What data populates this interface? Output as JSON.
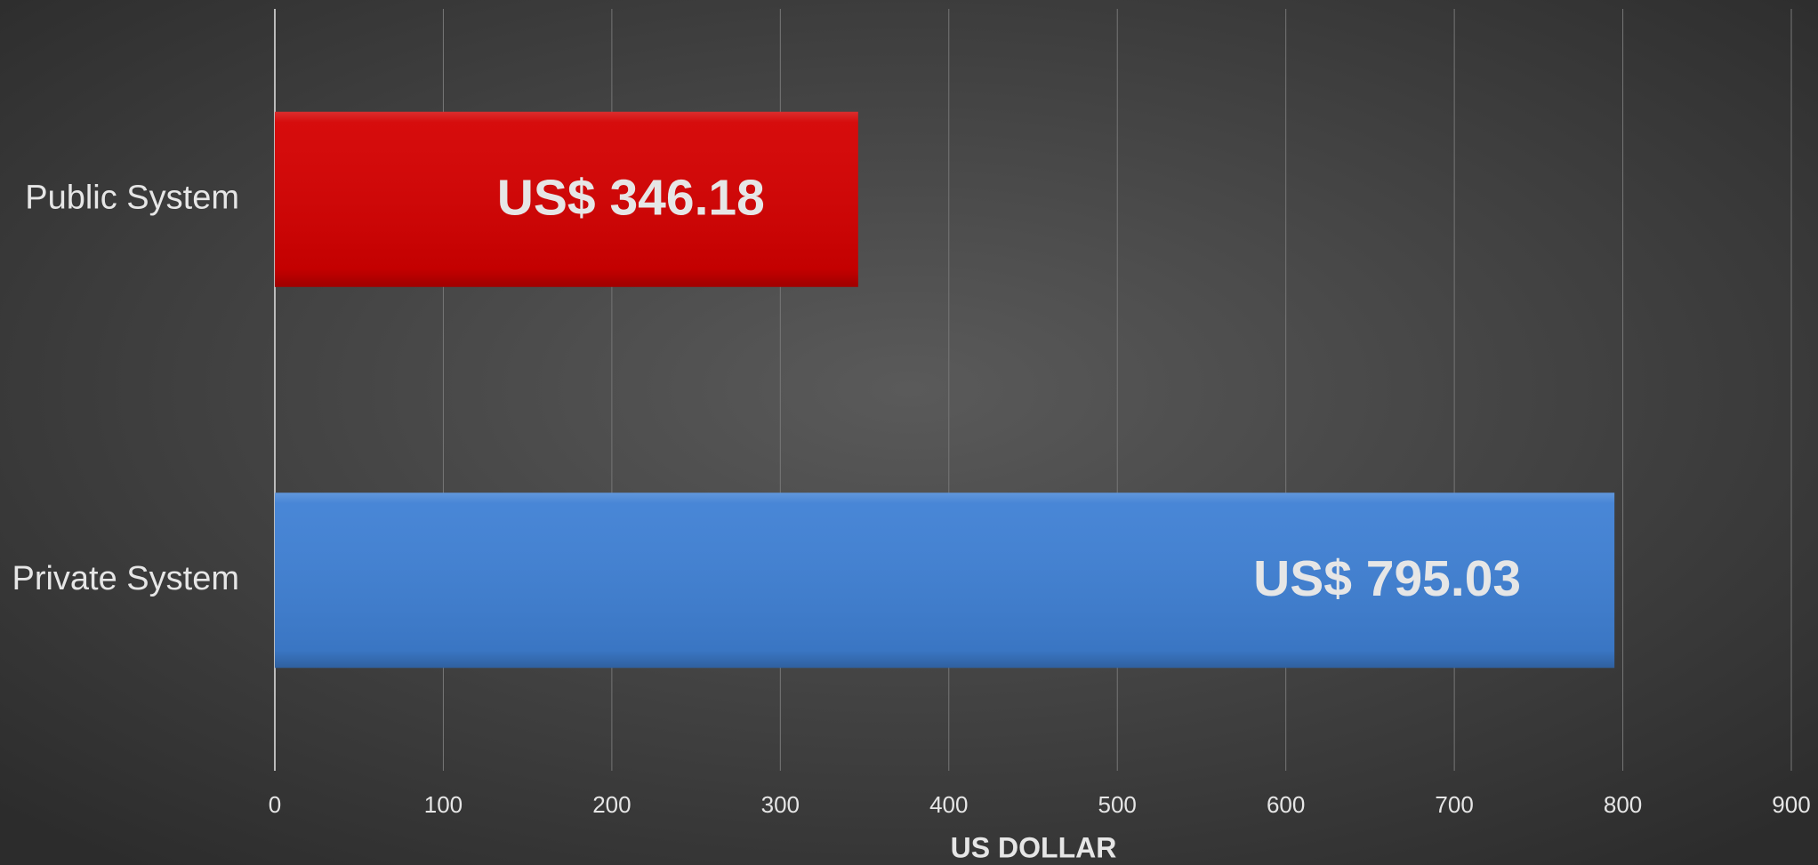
{
  "chart_data": {
    "type": "hbar",
    "categories": [
      "Public System",
      "Private System"
    ],
    "values": [
      346.18,
      795.03
    ],
    "value_labels": [
      "US$ 346.18",
      "US$ 795.03"
    ],
    "colors": [
      "#d40000",
      "#3f80d4"
    ],
    "xlabel": "US DOLLAR",
    "xlim": [
      0,
      900
    ],
    "xticks": [
      0,
      100,
      200,
      300,
      400,
      500,
      600,
      700,
      800,
      900
    ],
    "grid": true
  }
}
